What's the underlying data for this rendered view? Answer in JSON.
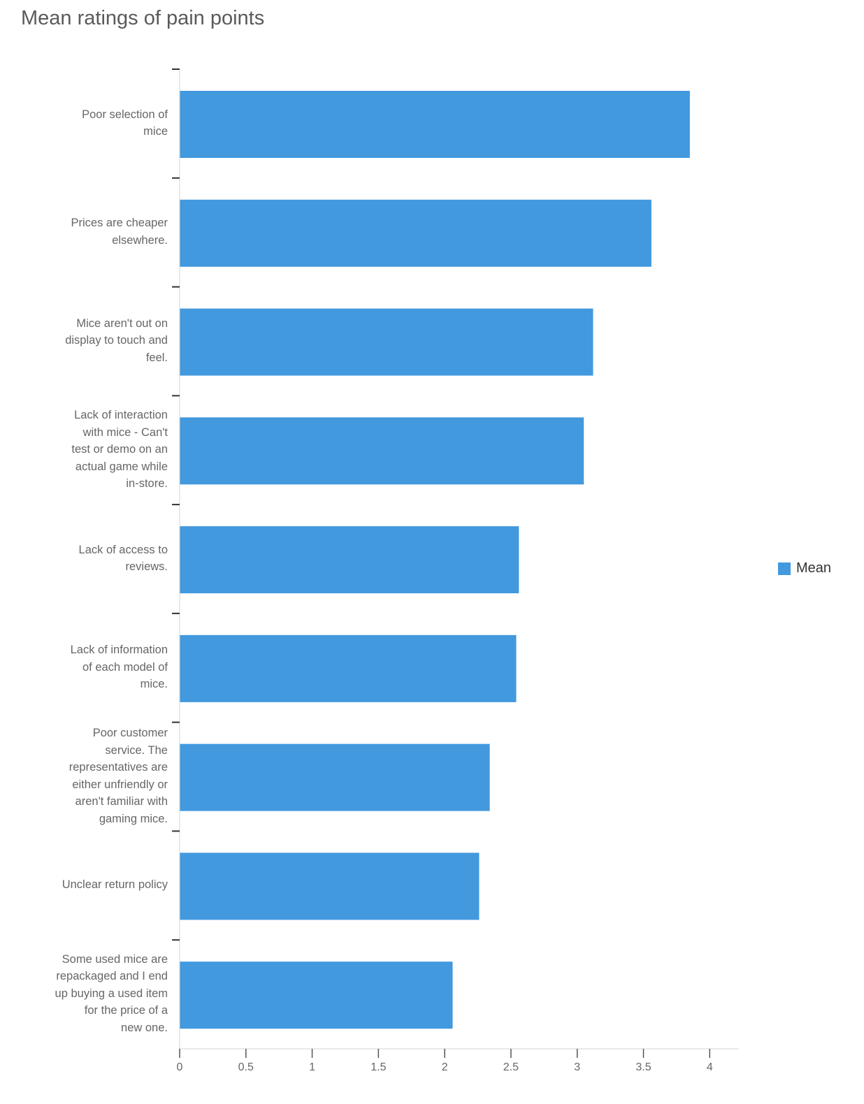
{
  "chart_data": {
    "type": "bar",
    "orientation": "horizontal",
    "title": "Mean ratings of pain points",
    "categories": [
      "Poor selection of mice",
      "Prices are cheaper elsewhere.",
      "Mice aren't out on display to touch and feel.",
      "Lack of interaction with mice - Can't test or demo on an actual game while in-store.",
      "Lack of access to reviews.",
      "Lack of information of each model of mice.",
      "Poor customer service. The representatives are either unfriendly or aren't familiar with gaming mice.",
      "Unclear return policy",
      "Some used mice are repackaged and I end up buying a used item for the price of a new one."
    ],
    "category_label_lines": [
      [
        "Poor selection of",
        "mice"
      ],
      [
        "Prices are cheaper",
        "elsewhere."
      ],
      [
        "Mice aren't out on",
        "display to touch and",
        "feel."
      ],
      [
        "Lack of interaction",
        "with mice - Can't",
        "test or demo on an",
        "actual game while",
        "in-store."
      ],
      [
        "Lack of access to",
        "reviews."
      ],
      [
        "Lack of information",
        "of each model of",
        "mice."
      ],
      [
        "Poor customer",
        "service. The",
        "representatives are",
        "either unfriendly or",
        "aren't familiar with",
        "gaming mice."
      ],
      [
        "Unclear return policy"
      ],
      [
        "Some used mice are",
        "repackaged and I end",
        "up buying a used item",
        "for the price of a",
        "new one."
      ]
    ],
    "series": [
      {
        "name": "Mean",
        "values": [
          3.85,
          3.56,
          3.12,
          3.05,
          2.56,
          2.54,
          2.34,
          2.26,
          2.06
        ]
      }
    ],
    "x_ticks": [
      "0",
      "0.5",
      "1",
      "1.5",
      "2",
      "2.5",
      "3",
      "3.5",
      "4"
    ],
    "xlim": [
      0,
      4.22
    ],
    "grid": false,
    "legend_position": "right",
    "bar_color": "#4299de"
  }
}
